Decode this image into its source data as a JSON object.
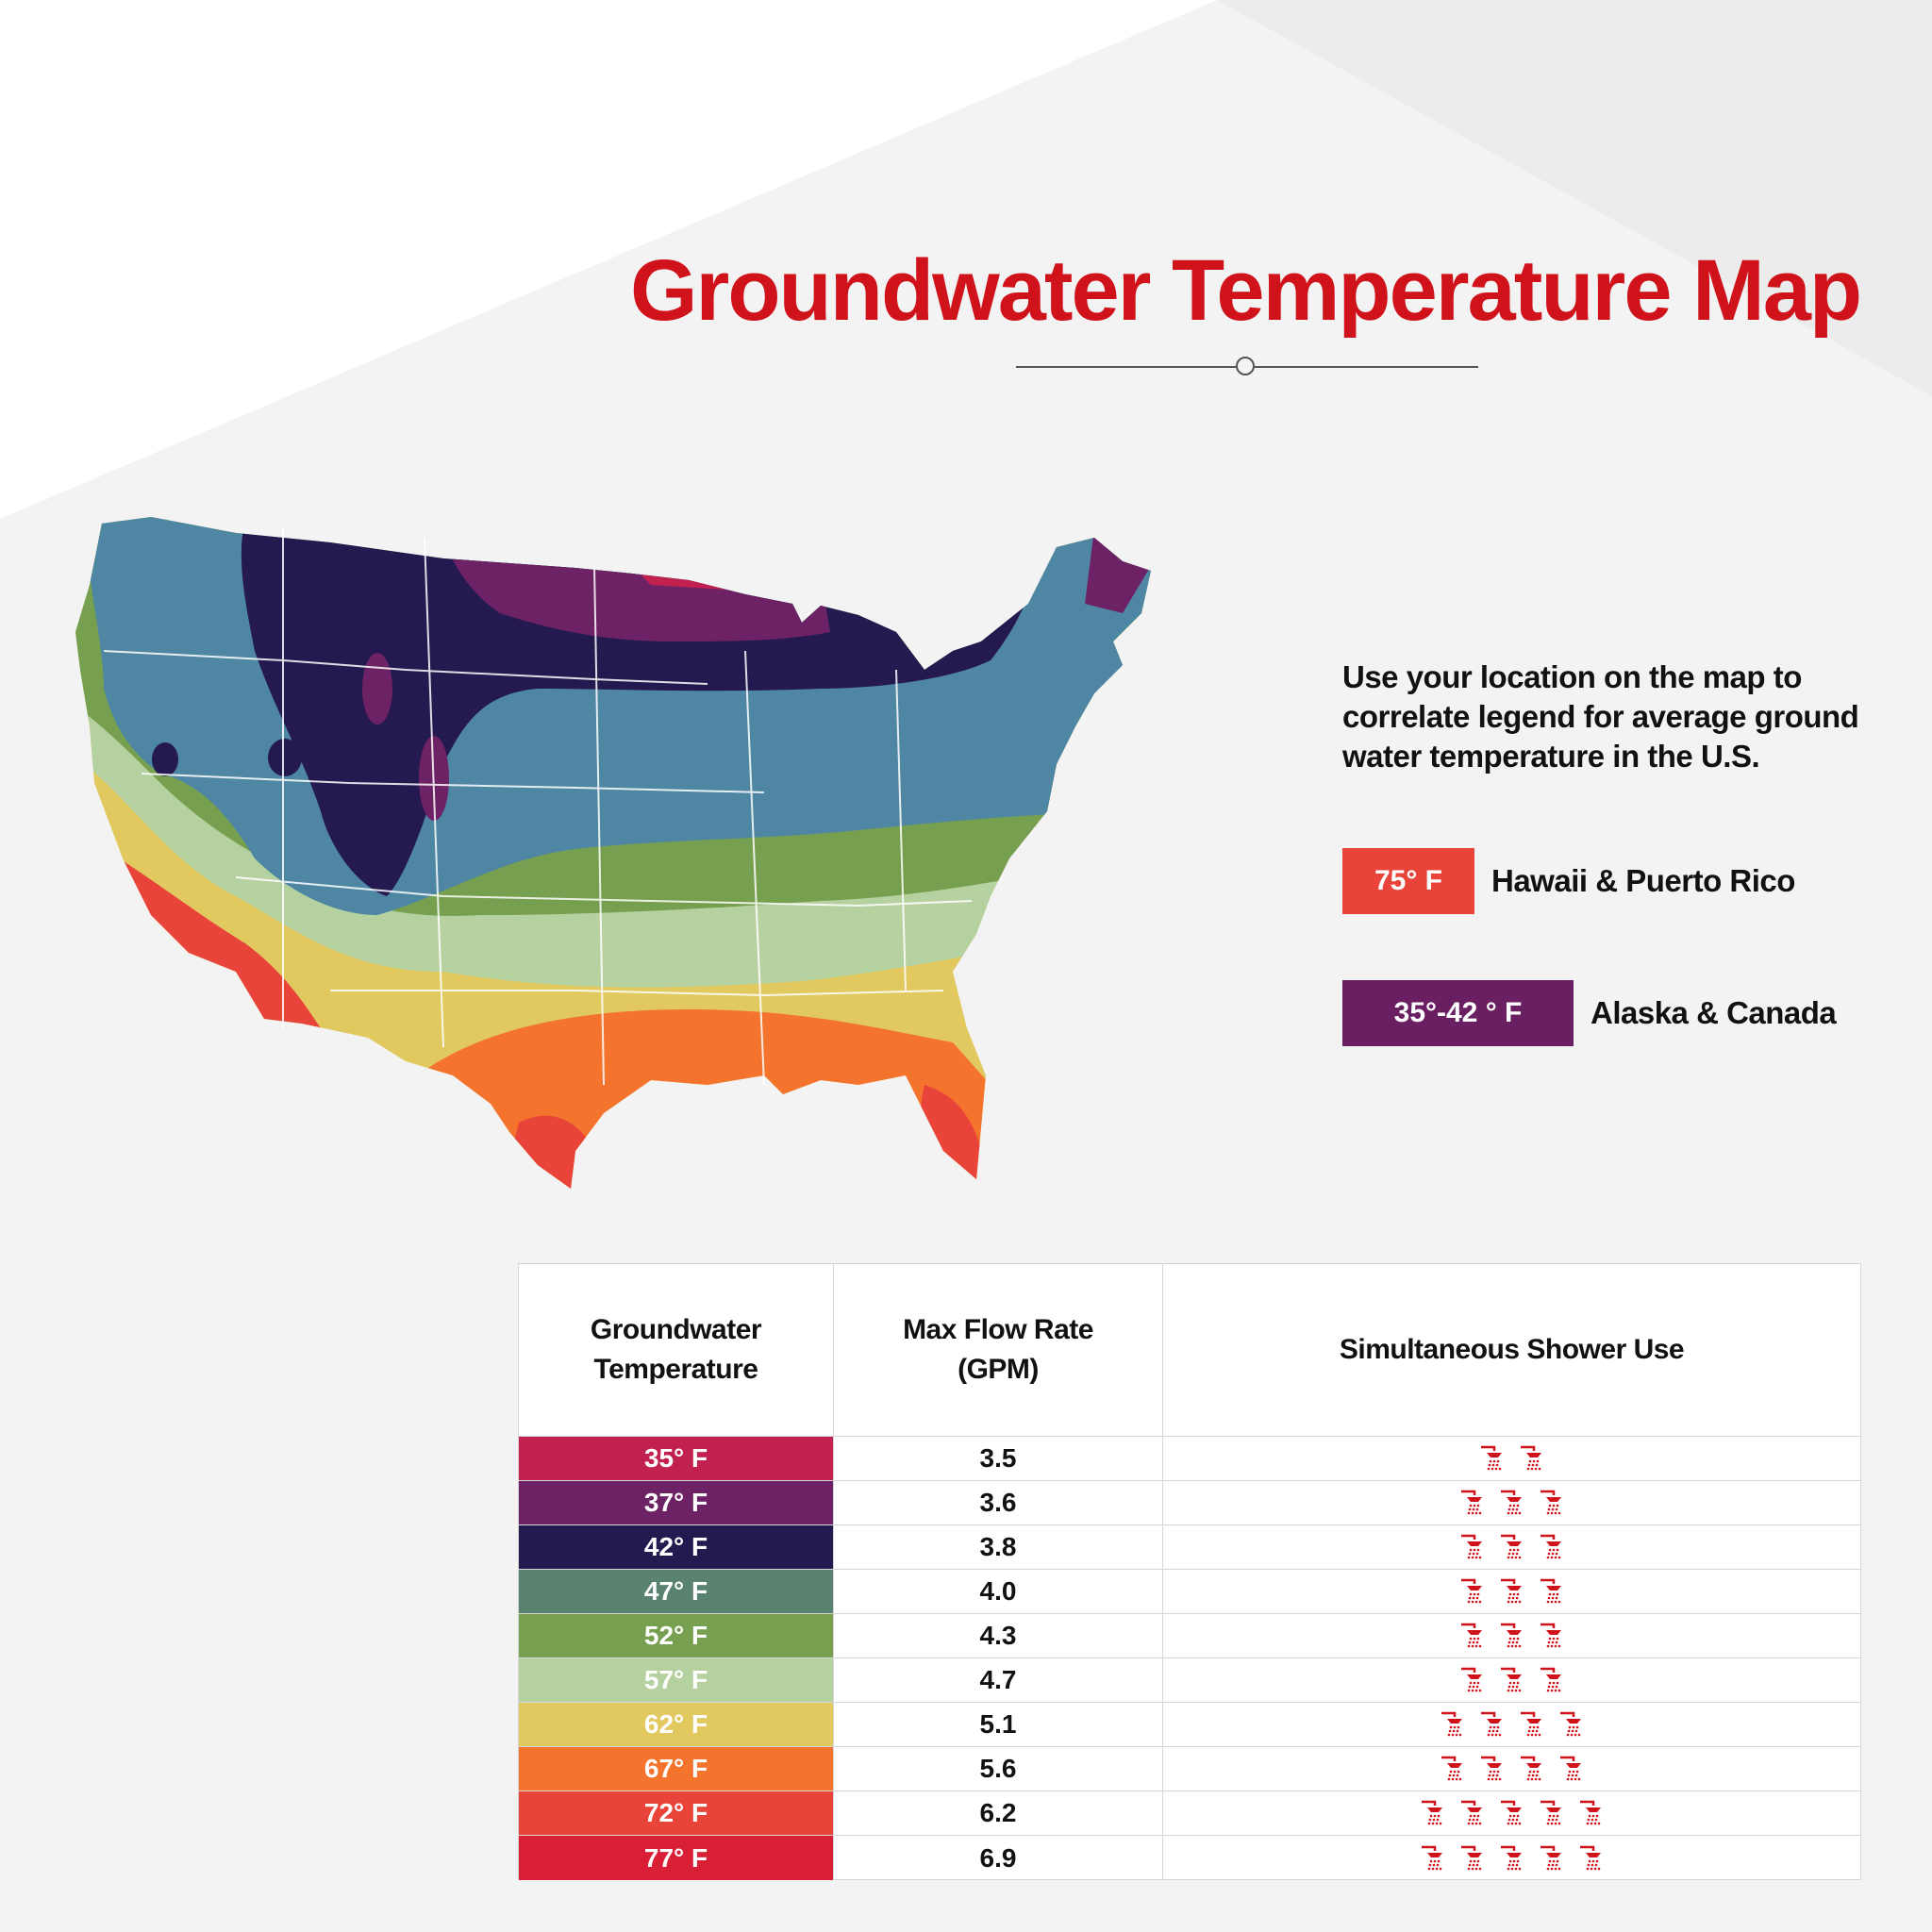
{
  "title": "Groundwater Temperature Map",
  "intro_text": "Use your location on the map to correlate legend for average ground water temperature  in the U.S.",
  "legend": [
    {
      "swatch": "75° F",
      "label": "Hawaii & Puerto Rico",
      "color": "#e8443a"
    },
    {
      "swatch": "35°-42 ° F",
      "label": "Alaska & Canada",
      "color": "#6a1f63"
    }
  ],
  "map_regions": [
    {
      "name": "35",
      "color": "#c2214f"
    },
    {
      "name": "37",
      "color": "#6e2266"
    },
    {
      "name": "42",
      "color": "#241a4f"
    },
    {
      "name": "47",
      "color": "#4f86a3"
    },
    {
      "name": "52",
      "color": "#76a04f"
    },
    {
      "name": "57",
      "color": "#b6d1a0"
    },
    {
      "name": "62",
      "color": "#e1c85f"
    },
    {
      "name": "67",
      "color": "#f4742e"
    },
    {
      "name": "72",
      "color": "#e8443a"
    }
  ],
  "table": {
    "headers": [
      "Groundwater Temperature",
      "Max Flow Rate (GPM)",
      "Simultaneous Shower Use"
    ],
    "rows": [
      {
        "temp": "35° F",
        "color": "#c2214f",
        "flow": "3.5",
        "showers": 2
      },
      {
        "temp": "37° F",
        "color": "#6e2266",
        "flow": "3.6",
        "showers": 3
      },
      {
        "temp": "42° F",
        "color": "#241a4f",
        "flow": "3.8",
        "showers": 3
      },
      {
        "temp": "47° F",
        "color": "#5a8270",
        "flow": "4.0",
        "showers": 3
      },
      {
        "temp": "52° F",
        "color": "#76a04f",
        "flow": "4.3",
        "showers": 3
      },
      {
        "temp": "57° F",
        "color": "#b6d1a0",
        "flow": "4.7",
        "showers": 3
      },
      {
        "temp": "62° F",
        "color": "#e1c85f",
        "flow": "5.1",
        "showers": 4
      },
      {
        "temp": "67° F",
        "color": "#f4742e",
        "flow": "5.6",
        "showers": 4
      },
      {
        "temp": "72° F",
        "color": "#e8443a",
        "flow": "6.2",
        "showers": 5
      },
      {
        "temp": "77° F",
        "color": "#d81f35",
        "flow": "6.9",
        "showers": 5
      }
    ]
  },
  "icons": {
    "shower": "shower-head-icon",
    "divider": "circle-divider-icon"
  }
}
